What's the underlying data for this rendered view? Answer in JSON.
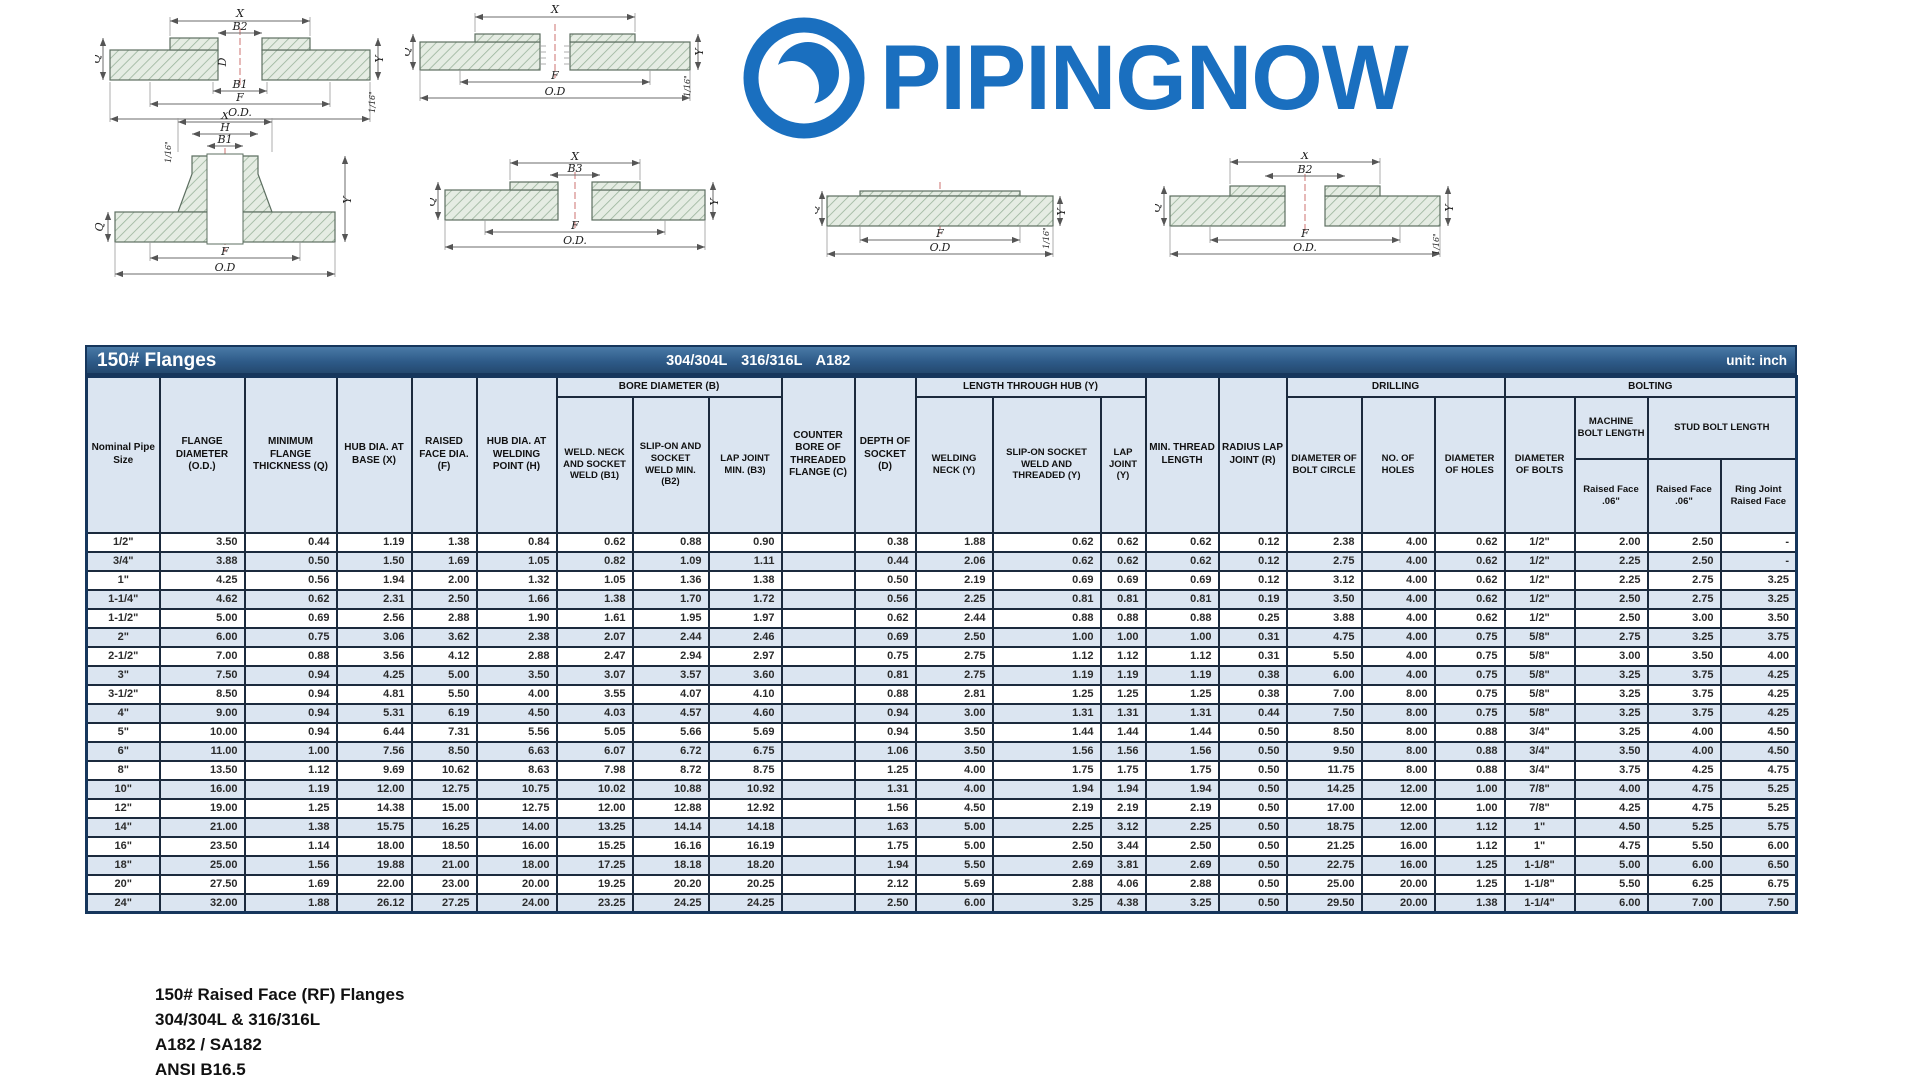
{
  "logo": {
    "text": "PIPINGNOW",
    "color": "#1a6fbf"
  },
  "table": {
    "title": "150# Flanges",
    "subtitle": "304/304L 316/316L A182",
    "unit": "unit: inch",
    "groups": {
      "bore": "BORE DIAMETER (B)",
      "hub": "LENGTH THROUGH HUB (Y)",
      "drilling": "DRILLING",
      "bolting": "BOLTING",
      "machine_bolt": "MACHINE BOLT LENGTH",
      "stud_bolt": "STUD BOLT LENGTH"
    },
    "columns": [
      "Nominal Pipe Size",
      "FLANGE DIAMETER (O.D.)",
      "MINIMUM FLANGE THICKNESS (Q)",
      "HUB DIA. AT BASE (X)",
      "RAISED FACE DIA. (F)",
      "HUB DIA. AT WELDING POINT (H)",
      "WELD. NECK AND SOCKET WELD (B1)",
      "SLIP-ON AND SOCKET WELD MIN. (B2)",
      "LAP JOINT MIN. (B3)",
      "COUNTER BORE OF THREADED FLANGE (C)",
      "DEPTH OF SOCKET (D)",
      "WELDING NECK (Y)",
      "SLIP-ON SOCKET WELD AND THREADED (Y)",
      "LAP JOINT (Y)",
      "MIN. THREAD LENGTH",
      "RADIUS LAP JOINT (R)",
      "DIAMETER OF BOLT CIRCLE",
      "NO. OF HOLES",
      "DIAMETER OF HOLES",
      "DIAMETER OF BOLTS",
      "Raised Face .06\"",
      "Raised Face .06\"",
      "Ring Joint Raised Face"
    ],
    "rows": [
      [
        "1/2\"",
        "3.50",
        "0.44",
        "1.19",
        "1.38",
        "0.84",
        "0.62",
        "0.88",
        "0.90",
        "",
        "0.38",
        "1.88",
        "0.62",
        "0.62",
        "0.62",
        "0.12",
        "2.38",
        "4.00",
        "0.62",
        "1/2\"",
        "2.00",
        "2.50",
        "-"
      ],
      [
        "3/4\"",
        "3.88",
        "0.50",
        "1.50",
        "1.69",
        "1.05",
        "0.82",
        "1.09",
        "1.11",
        "",
        "0.44",
        "2.06",
        "0.62",
        "0.62",
        "0.62",
        "0.12",
        "2.75",
        "4.00",
        "0.62",
        "1/2\"",
        "2.25",
        "2.50",
        "-"
      ],
      [
        "1\"",
        "4.25",
        "0.56",
        "1.94",
        "2.00",
        "1.32",
        "1.05",
        "1.36",
        "1.38",
        "",
        "0.50",
        "2.19",
        "0.69",
        "0.69",
        "0.69",
        "0.12",
        "3.12",
        "4.00",
        "0.62",
        "1/2\"",
        "2.25",
        "2.75",
        "3.25"
      ],
      [
        "1-1/4\"",
        "4.62",
        "0.62",
        "2.31",
        "2.50",
        "1.66",
        "1.38",
        "1.70",
        "1.72",
        "",
        "0.56",
        "2.25",
        "0.81",
        "0.81",
        "0.81",
        "0.19",
        "3.50",
        "4.00",
        "0.62",
        "1/2\"",
        "2.50",
        "2.75",
        "3.25"
      ],
      [
        "1-1/2\"",
        "5.00",
        "0.69",
        "2.56",
        "2.88",
        "1.90",
        "1.61",
        "1.95",
        "1.97",
        "",
        "0.62",
        "2.44",
        "0.88",
        "0.88",
        "0.88",
        "0.25",
        "3.88",
        "4.00",
        "0.62",
        "1/2\"",
        "2.50",
        "3.00",
        "3.50"
      ],
      [
        "2\"",
        "6.00",
        "0.75",
        "3.06",
        "3.62",
        "2.38",
        "2.07",
        "2.44",
        "2.46",
        "",
        "0.69",
        "2.50",
        "1.00",
        "1.00",
        "1.00",
        "0.31",
        "4.75",
        "4.00",
        "0.75",
        "5/8\"",
        "2.75",
        "3.25",
        "3.75"
      ],
      [
        "2-1/2\"",
        "7.00",
        "0.88",
        "3.56",
        "4.12",
        "2.88",
        "2.47",
        "2.94",
        "2.97",
        "",
        "0.75",
        "2.75",
        "1.12",
        "1.12",
        "1.12",
        "0.31",
        "5.50",
        "4.00",
        "0.75",
        "5/8\"",
        "3.00",
        "3.50",
        "4.00"
      ],
      [
        "3\"",
        "7.50",
        "0.94",
        "4.25",
        "5.00",
        "3.50",
        "3.07",
        "3.57",
        "3.60",
        "",
        "0.81",
        "2.75",
        "1.19",
        "1.19",
        "1.19",
        "0.38",
        "6.00",
        "4.00",
        "0.75",
        "5/8\"",
        "3.25",
        "3.75",
        "4.25"
      ],
      [
        "3-1/2\"",
        "8.50",
        "0.94",
        "4.81",
        "5.50",
        "4.00",
        "3.55",
        "4.07",
        "4.10",
        "",
        "0.88",
        "2.81",
        "1.25",
        "1.25",
        "1.25",
        "0.38",
        "7.00",
        "8.00",
        "0.75",
        "5/8\"",
        "3.25",
        "3.75",
        "4.25"
      ],
      [
        "4\"",
        "9.00",
        "0.94",
        "5.31",
        "6.19",
        "4.50",
        "4.03",
        "4.57",
        "4.60",
        "",
        "0.94",
        "3.00",
        "1.31",
        "1.31",
        "1.31",
        "0.44",
        "7.50",
        "8.00",
        "0.75",
        "5/8\"",
        "3.25",
        "3.75",
        "4.25"
      ],
      [
        "5\"",
        "10.00",
        "0.94",
        "6.44",
        "7.31",
        "5.56",
        "5.05",
        "5.66",
        "5.69",
        "",
        "0.94",
        "3.50",
        "1.44",
        "1.44",
        "1.44",
        "0.50",
        "8.50",
        "8.00",
        "0.88",
        "3/4\"",
        "3.25",
        "4.00",
        "4.50"
      ],
      [
        "6\"",
        "11.00",
        "1.00",
        "7.56",
        "8.50",
        "6.63",
        "6.07",
        "6.72",
        "6.75",
        "",
        "1.06",
        "3.50",
        "1.56",
        "1.56",
        "1.56",
        "0.50",
        "9.50",
        "8.00",
        "0.88",
        "3/4\"",
        "3.50",
        "4.00",
        "4.50"
      ],
      [
        "8\"",
        "13.50",
        "1.12",
        "9.69",
        "10.62",
        "8.63",
        "7.98",
        "8.72",
        "8.75",
        "",
        "1.25",
        "4.00",
        "1.75",
        "1.75",
        "1.75",
        "0.50",
        "11.75",
        "8.00",
        "0.88",
        "3/4\"",
        "3.75",
        "4.25",
        "4.75"
      ],
      [
        "10\"",
        "16.00",
        "1.19",
        "12.00",
        "12.75",
        "10.75",
        "10.02",
        "10.88",
        "10.92",
        "",
        "1.31",
        "4.00",
        "1.94",
        "1.94",
        "1.94",
        "0.50",
        "14.25",
        "12.00",
        "1.00",
        "7/8\"",
        "4.00",
        "4.75",
        "5.25"
      ],
      [
        "12\"",
        "19.00",
        "1.25",
        "14.38",
        "15.00",
        "12.75",
        "12.00",
        "12.88",
        "12.92",
        "",
        "1.56",
        "4.50",
        "2.19",
        "2.19",
        "2.19",
        "0.50",
        "17.00",
        "12.00",
        "1.00",
        "7/8\"",
        "4.25",
        "4.75",
        "5.25"
      ],
      [
        "14\"",
        "21.00",
        "1.38",
        "15.75",
        "16.25",
        "14.00",
        "13.25",
        "14.14",
        "14.18",
        "",
        "1.63",
        "5.00",
        "2.25",
        "3.12",
        "2.25",
        "0.50",
        "18.75",
        "12.00",
        "1.12",
        "1\"",
        "4.50",
        "5.25",
        "5.75"
      ],
      [
        "16\"",
        "23.50",
        "1.14",
        "18.00",
        "18.50",
        "16.00",
        "15.25",
        "16.16",
        "16.19",
        "",
        "1.75",
        "5.00",
        "2.50",
        "3.44",
        "2.50",
        "0.50",
        "21.25",
        "16.00",
        "1.12",
        "1\"",
        "4.75",
        "5.50",
        "6.00"
      ],
      [
        "18\"",
        "25.00",
        "1.56",
        "19.88",
        "21.00",
        "18.00",
        "17.25",
        "18.18",
        "18.20",
        "",
        "1.94",
        "5.50",
        "2.69",
        "3.81",
        "2.69",
        "0.50",
        "22.75",
        "16.00",
        "1.25",
        "1-1/8\"",
        "5.00",
        "6.00",
        "6.50"
      ],
      [
        "20\"",
        "27.50",
        "1.69",
        "22.00",
        "23.00",
        "20.00",
        "19.25",
        "20.20",
        "20.25",
        "",
        "2.12",
        "5.69",
        "2.88",
        "4.06",
        "2.88",
        "0.50",
        "25.00",
        "20.00",
        "1.25",
        "1-1/8\"",
        "5.50",
        "6.25",
        "6.75"
      ],
      [
        "24\"",
        "32.00",
        "1.88",
        "26.12",
        "27.25",
        "24.00",
        "23.25",
        "24.25",
        "24.25",
        "",
        "2.50",
        "6.00",
        "3.25",
        "4.38",
        "3.25",
        "0.50",
        "29.50",
        "20.00",
        "1.38",
        "1-1/4\"",
        "6.00",
        "7.00",
        "7.50"
      ]
    ]
  },
  "footer": {
    "lines": [
      "150# Raised Face (RF) Flanges",
      "304/304L & 316/316L",
      "A182 / SA182",
      "ANSI B16.5"
    ]
  },
  "diagrams": {
    "d1": {
      "x": "X",
      "b2": "B2",
      "d": "D",
      "q": "Q",
      "b1": "B1",
      "f": "F",
      "od": "O.D.",
      "y": "Y",
      "lip": "1/16\""
    },
    "d2": {
      "x": "X",
      "q": "Q",
      "f": "F",
      "od": "O.D",
      "y": "Y",
      "lip": "1/16\""
    },
    "d3": {
      "x": "X",
      "h": "H",
      "b1": "B1",
      "q": "Q",
      "f": "F",
      "od": "O.D",
      "y": "Y",
      "lip": "1/16\""
    },
    "d4": {
      "x": "X",
      "b3": "B3",
      "q": "Q",
      "f": "F",
      "od": "O.D.",
      "y": "Y"
    },
    "d5": {
      "q": "Q",
      "f": "F",
      "od": "O.D",
      "y": "Y",
      "lip": "1/16\""
    },
    "d6": {
      "x": "X",
      "b2": "B2",
      "q": "Q",
      "f": "F",
      "od": "O.D.",
      "y": "Y",
      "lip": "1/16\""
    }
  }
}
